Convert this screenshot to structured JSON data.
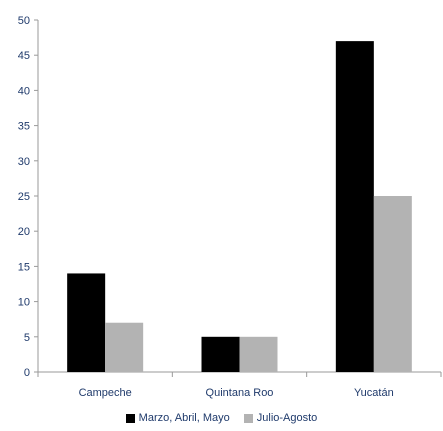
{
  "chart_data": {
    "type": "bar",
    "categories": [
      "Campeche",
      "Quintana Roo",
      "Yucatán"
    ],
    "series": [
      {
        "name": "Marzo, Abril, Mayo",
        "values": [
          14,
          5,
          47
        ],
        "color": "#000000"
      },
      {
        "name": "Julio-Agosto",
        "values": [
          7,
          5,
          25
        ],
        "color": "#b3b3b3"
      }
    ],
    "title": "",
    "xlabel": "",
    "ylabel": "",
    "ylim": [
      0,
      50
    ],
    "yticks": [
      0,
      5,
      10,
      15,
      20,
      25,
      30,
      35,
      40,
      45,
      50
    ],
    "grid": false,
    "legend_position": "bottom"
  }
}
